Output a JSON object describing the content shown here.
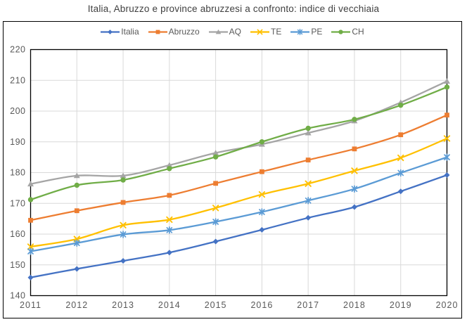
{
  "title": "Italia, Abruzzo e province abruzzesi a confronto: indice di vecchiaia",
  "chart_data": {
    "type": "line",
    "x": [
      "2011",
      "2012",
      "2013",
      "2014",
      "2015",
      "2016",
      "2017",
      "2018",
      "2019",
      "2020"
    ],
    "series": [
      {
        "name": "Italia",
        "color": "#4472C4",
        "marker": "diamond",
        "values": [
          145.9,
          148.7,
          151.3,
          154.0,
          157.6,
          161.4,
          165.3,
          168.8,
          173.9,
          179.2
        ]
      },
      {
        "name": "Abruzzo",
        "color": "#ED7D31",
        "marker": "square",
        "values": [
          164.5,
          167.6,
          170.3,
          172.6,
          176.5,
          180.3,
          184.1,
          187.7,
          192.3,
          198.7
        ]
      },
      {
        "name": "AQ",
        "color": "#A5A5A5",
        "marker": "triangle",
        "values": [
          176.3,
          179.0,
          179.0,
          182.4,
          186.4,
          189.2,
          192.9,
          196.8,
          202.8,
          209.7
        ]
      },
      {
        "name": "TE",
        "color": "#FFC000",
        "marker": "x",
        "values": [
          155.9,
          158.4,
          162.9,
          164.7,
          168.5,
          172.9,
          176.4,
          180.6,
          184.8,
          191.1
        ]
      },
      {
        "name": "PE",
        "color": "#5B9BD5",
        "marker": "asterisk",
        "values": [
          154.4,
          157.1,
          159.9,
          161.3,
          164.0,
          167.2,
          170.9,
          174.7,
          179.9,
          185.0
        ]
      },
      {
        "name": "CH",
        "color": "#70AD47",
        "marker": "circle",
        "values": [
          171.2,
          175.9,
          177.6,
          181.3,
          185.1,
          190.0,
          194.4,
          197.3,
          201.9,
          207.8
        ]
      }
    ],
    "ylim": [
      140,
      220
    ],
    "ytick_step": 10,
    "grid": true,
    "smoothed": true,
    "legend_position": "top",
    "xlabel": "",
    "ylabel": ""
  },
  "style": {
    "title_color": "#3f3f3f",
    "tick_label_color": "#595959",
    "legend_text_color": "#595959",
    "gridline_color": "#D9D9D9",
    "axis_color": "#000000",
    "chart_border_color": "#000000",
    "background": "#FFFFFF"
  }
}
